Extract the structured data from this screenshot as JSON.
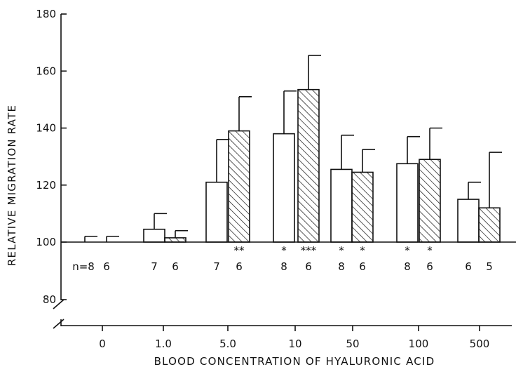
{
  "chart_data": {
    "type": "bar",
    "title": "",
    "xlabel": "BLOOD CONCENTRATION OF HYALURONIC ACID",
    "ylabel": "RELATIVE MIGRATION RATE",
    "ylim": [
      75,
      180
    ],
    "yticks": [
      80,
      100,
      120,
      140,
      160,
      180
    ],
    "y_axis_break": true,
    "baseline": 100,
    "grid": false,
    "legend": "none",
    "categories": [
      "0",
      "1.0",
      "5.0",
      "10",
      "50",
      "100",
      "500"
    ],
    "series": [
      {
        "fill": "open",
        "values": [
          100,
          104.5,
          121,
          138,
          125.5,
          127.5,
          115
        ],
        "errors": [
          2,
          5.5,
          15,
          15,
          12,
          9.5,
          6
        ],
        "n": [
          "n=8",
          "7",
          "7",
          "8",
          "8",
          "8",
          "6"
        ],
        "significance": [
          "",
          "",
          "",
          "*",
          "*",
          "*",
          ""
        ]
      },
      {
        "fill": "hatched",
        "values": [
          100,
          101.5,
          139,
          153.5,
          124.5,
          129,
          112
        ],
        "errors": [
          2,
          2.5,
          12,
          12,
          8,
          11,
          19.5
        ],
        "n": [
          "6",
          "6",
          "6",
          "6",
          "6",
          "6",
          "5"
        ],
        "significance": [
          "",
          "",
          "**",
          "***",
          "*",
          "*",
          ""
        ]
      }
    ]
  }
}
